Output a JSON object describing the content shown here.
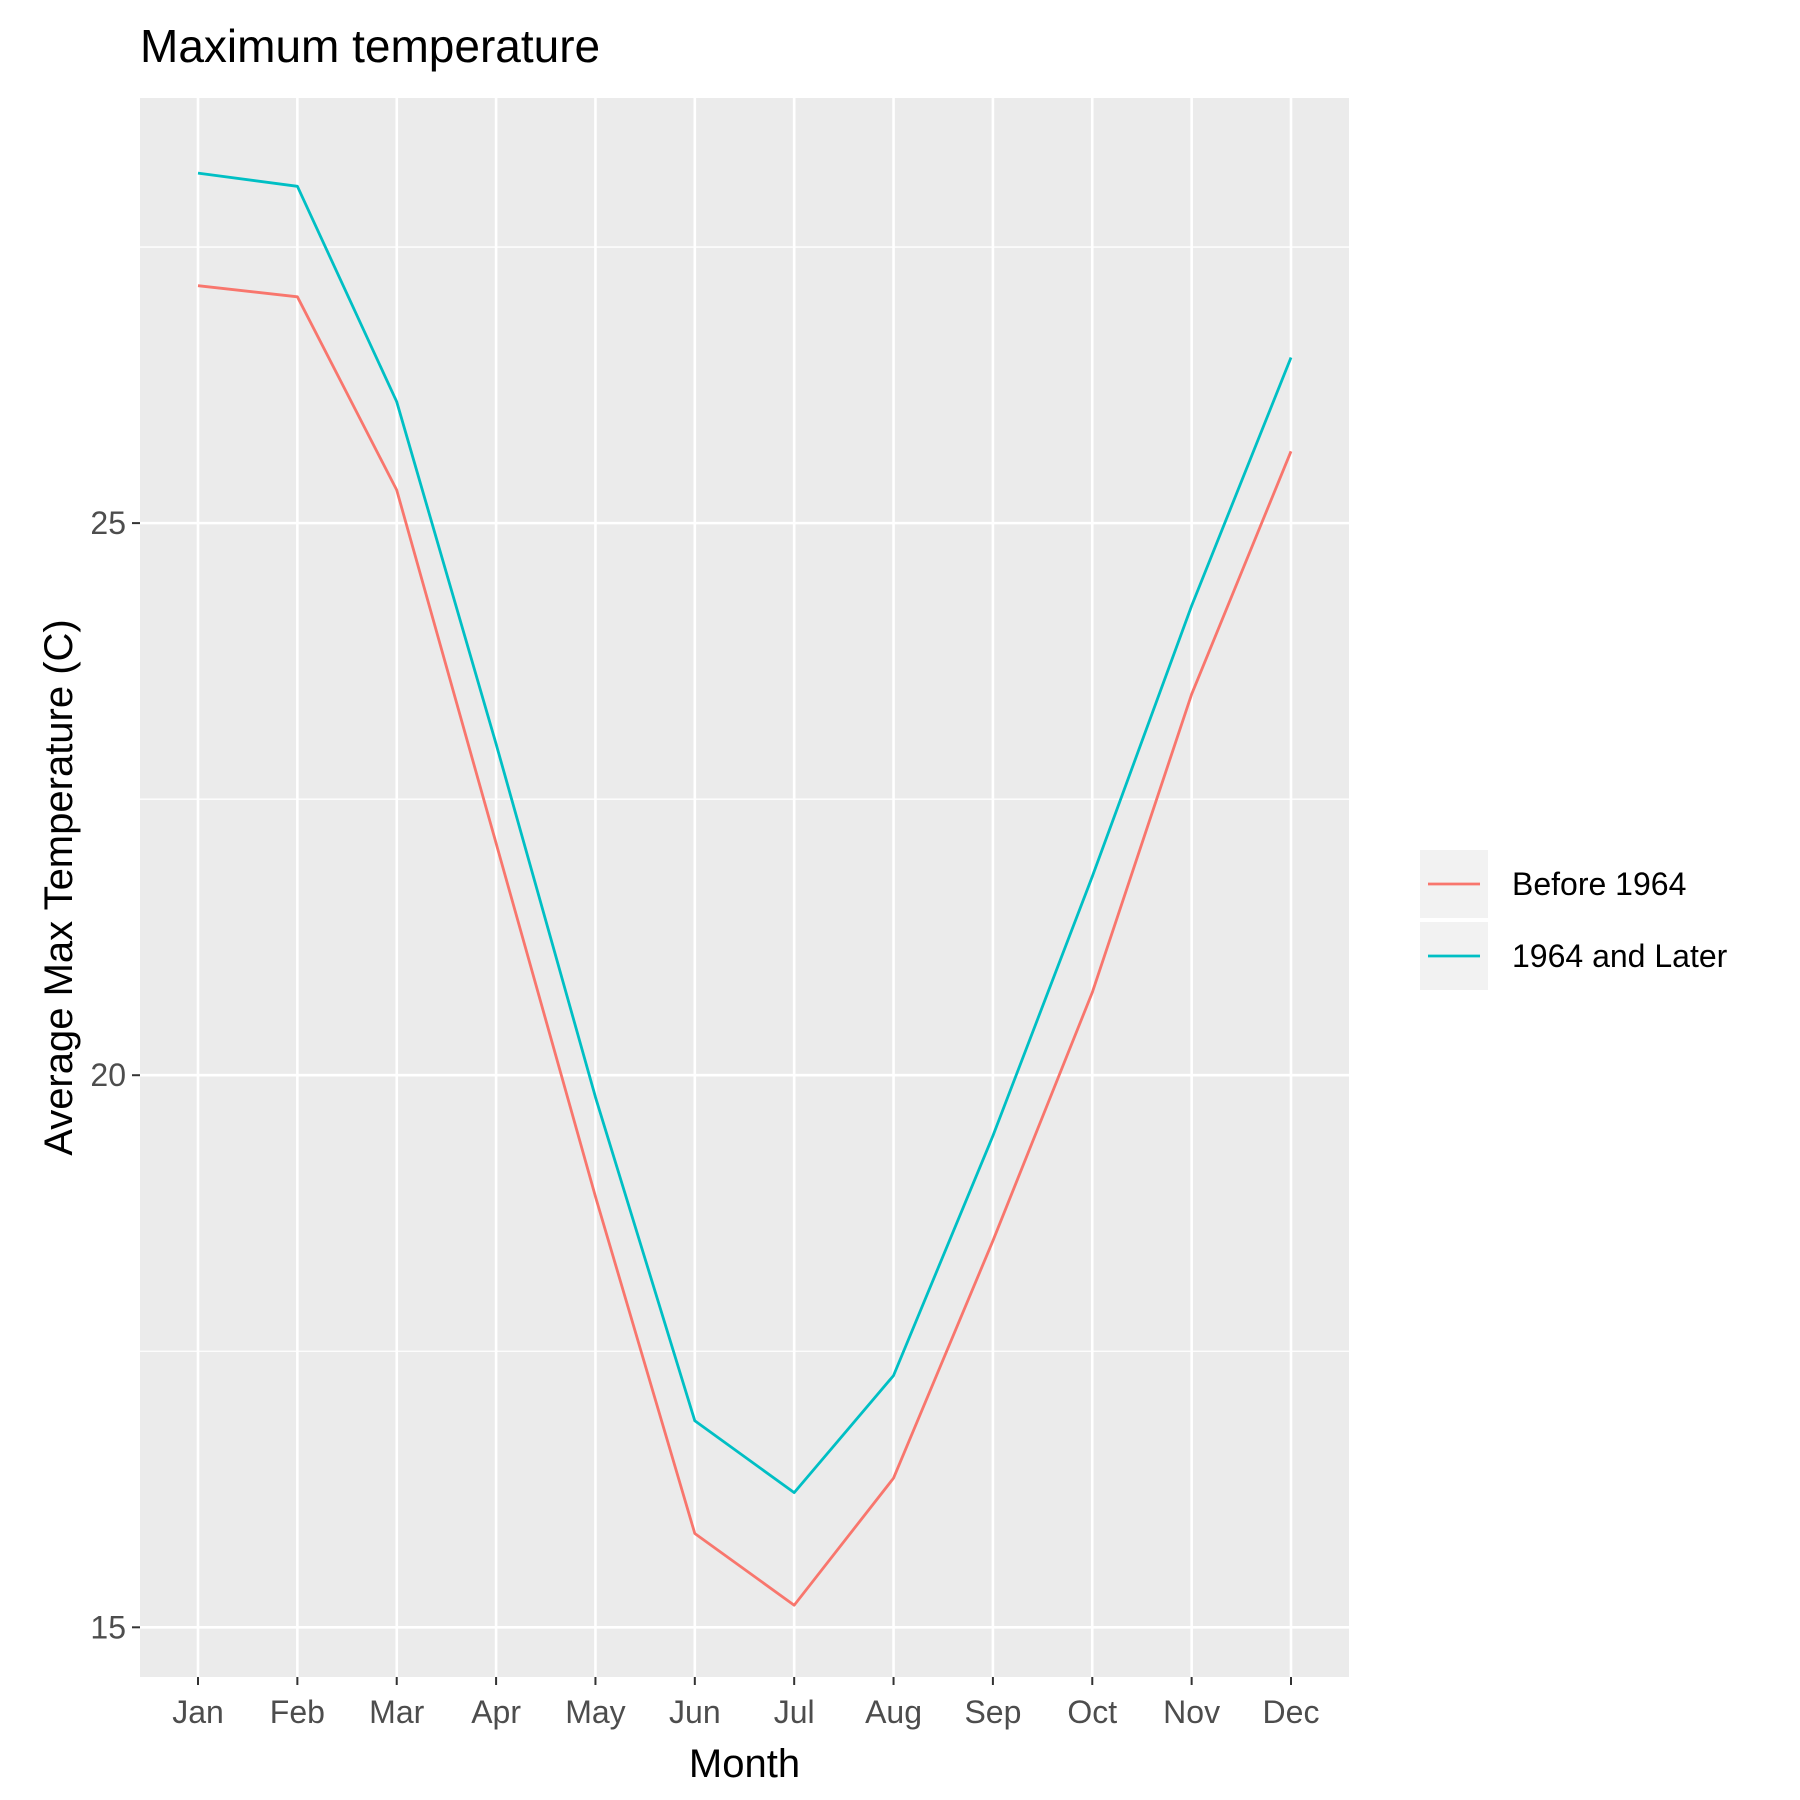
{
  "chart_data": {
    "type": "line",
    "title": "Maximum temperature",
    "xlabel": "Month",
    "ylabel": "Average Max Temperature (C)",
    "categories": [
      "Jan",
      "Feb",
      "Mar",
      "Apr",
      "May",
      "Jun",
      "Jul",
      "Aug",
      "Sep",
      "Oct",
      "Nov",
      "Dec"
    ],
    "ylim": [
      14.55,
      28.85
    ],
    "yticks": [
      15,
      20,
      25
    ],
    "grid": true,
    "legend_position": "right",
    "series": [
      {
        "name": "Before 1964",
        "color": "#F8766D",
        "values": [
          27.15,
          27.05,
          25.3,
          22.1,
          18.9,
          15.85,
          15.2,
          16.35,
          18.5,
          20.75,
          23.45,
          25.65
        ]
      },
      {
        "name": "1964 and Later",
        "color": "#00BFC4",
        "values": [
          28.17,
          28.05,
          26.1,
          23.0,
          19.8,
          16.87,
          16.22,
          17.28,
          19.45,
          21.8,
          24.25,
          26.5
        ]
      }
    ]
  }
}
